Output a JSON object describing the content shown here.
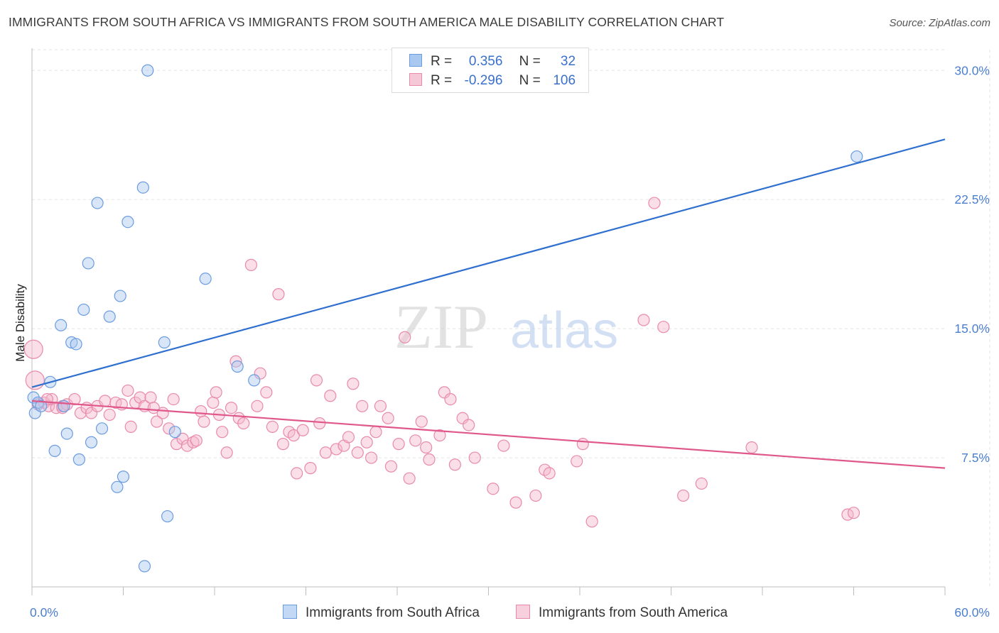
{
  "title": "IMMIGRANTS FROM SOUTH AFRICA VS IMMIGRANTS FROM SOUTH AMERICA MALE DISABILITY CORRELATION CHART",
  "source": "Source: ZipAtlas.com",
  "watermark": {
    "zip": "ZIP",
    "atlas": "atlas"
  },
  "colors": {
    "blue_fill": "#a9c8f0",
    "blue_stroke": "#6b9ce0",
    "blue_line": "#2f6fd0",
    "pink_fill": "#f5b6cb",
    "pink_stroke": "#e98aab",
    "pink_line": "#e0588a",
    "axis_text": "#4a7fd0",
    "grid": "#e3e3e3"
  },
  "legend": {
    "r_label": "R =",
    "n_label": "N =",
    "rows": [
      {
        "r": "0.356",
        "n": "32"
      },
      {
        "r": "-0.296",
        "n": "106"
      }
    ]
  },
  "chart_data": {
    "type": "scatter",
    "xlabel": "",
    "ylabel": "Male Disability",
    "xlim": [
      0,
      60
    ],
    "ylim": [
      0,
      31
    ],
    "x_tick_labels": [
      "0.0%",
      "60.0%"
    ],
    "y_ticks": [
      7.5,
      15.0,
      22.5,
      30.0
    ],
    "y_tick_labels": [
      "7.5%",
      "15.0%",
      "22.5%",
      "30.0%"
    ],
    "grid": "horizontal dashed",
    "legend_position": "top-center",
    "series": [
      {
        "name": "Immigrants from South Africa",
        "color": "blue",
        "trend": {
          "x": [
            0,
            60
          ],
          "y": [
            11.6,
            26.0
          ]
        },
        "points": [
          [
            0.1,
            11.0
          ],
          [
            0.2,
            10.1
          ],
          [
            0.4,
            10.7
          ],
          [
            0.6,
            10.5
          ],
          [
            1.2,
            11.9
          ],
          [
            1.5,
            7.9
          ],
          [
            1.9,
            15.2
          ],
          [
            2.1,
            10.5
          ],
          [
            2.3,
            8.9
          ],
          [
            2.6,
            14.2
          ],
          [
            2.9,
            14.1
          ],
          [
            3.1,
            7.4
          ],
          [
            3.4,
            16.1
          ],
          [
            3.7,
            18.8
          ],
          [
            3.9,
            8.4
          ],
          [
            4.3,
            22.3
          ],
          [
            4.6,
            9.2
          ],
          [
            5.1,
            15.7
          ],
          [
            5.8,
            16.9
          ],
          [
            5.6,
            5.8
          ],
          [
            6.0,
            6.4
          ],
          [
            6.3,
            21.2
          ],
          [
            7.3,
            23.2
          ],
          [
            7.6,
            30.0
          ],
          [
            7.4,
            1.2
          ],
          [
            8.7,
            14.2
          ],
          [
            8.9,
            4.1
          ],
          [
            9.4,
            9.0
          ],
          [
            11.4,
            17.9
          ],
          [
            13.5,
            12.8
          ],
          [
            14.6,
            12.0
          ],
          [
            54.2,
            25.0
          ]
        ]
      },
      {
        "name": "Immigrants from South America",
        "color": "pink",
        "trend": {
          "x": [
            0,
            60
          ],
          "y": [
            10.8,
            6.9
          ]
        },
        "points": [
          [
            0.1,
            13.8
          ],
          [
            0.2,
            12.0
          ],
          [
            0.4,
            10.6
          ],
          [
            0.8,
            10.7
          ],
          [
            1.1,
            10.5
          ],
          [
            1.3,
            10.9
          ],
          [
            1.6,
            10.4
          ],
          [
            2.0,
            10.5
          ],
          [
            2.3,
            10.6
          ],
          [
            2.8,
            10.9
          ],
          [
            3.2,
            10.1
          ],
          [
            3.6,
            10.4
          ],
          [
            3.9,
            10.1
          ],
          [
            4.3,
            10.5
          ],
          [
            4.8,
            10.8
          ],
          [
            5.1,
            10.0
          ],
          [
            5.5,
            10.7
          ],
          [
            5.9,
            10.6
          ],
          [
            6.3,
            11.4
          ],
          [
            6.5,
            9.3
          ],
          [
            6.8,
            10.7
          ],
          [
            7.1,
            11.0
          ],
          [
            7.4,
            10.5
          ],
          [
            7.8,
            11.0
          ],
          [
            8.0,
            10.4
          ],
          [
            8.2,
            9.6
          ],
          [
            8.6,
            10.1
          ],
          [
            9.0,
            9.2
          ],
          [
            9.3,
            10.9
          ],
          [
            9.5,
            8.3
          ],
          [
            9.9,
            8.6
          ],
          [
            10.2,
            8.2
          ],
          [
            10.6,
            8.4
          ],
          [
            11.1,
            10.2
          ],
          [
            11.3,
            9.6
          ],
          [
            11.9,
            10.7
          ],
          [
            12.1,
            11.3
          ],
          [
            12.5,
            9.0
          ],
          [
            12.8,
            7.8
          ],
          [
            13.1,
            10.4
          ],
          [
            13.4,
            13.1
          ],
          [
            13.6,
            9.8
          ],
          [
            13.9,
            9.5
          ],
          [
            14.4,
            18.7
          ],
          [
            14.8,
            10.5
          ],
          [
            15.0,
            12.4
          ],
          [
            15.4,
            11.3
          ],
          [
            15.8,
            9.3
          ],
          [
            16.2,
            17.0
          ],
          [
            16.5,
            8.3
          ],
          [
            16.9,
            9.0
          ],
          [
            17.2,
            8.8
          ],
          [
            17.4,
            6.6
          ],
          [
            17.8,
            9.1
          ],
          [
            18.3,
            6.9
          ],
          [
            18.7,
            12.0
          ],
          [
            18.9,
            9.5
          ],
          [
            19.3,
            7.8
          ],
          [
            19.6,
            11.1
          ],
          [
            20.0,
            8.0
          ],
          [
            20.5,
            8.2
          ],
          [
            20.8,
            8.7
          ],
          [
            21.1,
            11.8
          ],
          [
            21.4,
            7.8
          ],
          [
            21.7,
            10.5
          ],
          [
            22.0,
            8.4
          ],
          [
            22.3,
            7.5
          ],
          [
            22.6,
            9.0
          ],
          [
            22.9,
            10.5
          ],
          [
            23.4,
            9.8
          ],
          [
            23.6,
            7.0
          ],
          [
            24.1,
            8.3
          ],
          [
            24.5,
            14.5
          ],
          [
            24.8,
            6.3
          ],
          [
            25.2,
            8.5
          ],
          [
            25.6,
            9.6
          ],
          [
            25.9,
            8.1
          ],
          [
            26.1,
            7.4
          ],
          [
            26.8,
            8.8
          ],
          [
            27.1,
            11.3
          ],
          [
            27.5,
            10.9
          ],
          [
            27.8,
            7.1
          ],
          [
            28.3,
            9.8
          ],
          [
            28.7,
            9.4
          ],
          [
            29.1,
            7.5
          ],
          [
            30.3,
            5.7
          ],
          [
            31.0,
            8.2
          ],
          [
            31.8,
            4.9
          ],
          [
            33.1,
            5.3
          ],
          [
            33.7,
            6.8
          ],
          [
            34.0,
            6.6
          ],
          [
            35.8,
            7.3
          ],
          [
            36.2,
            8.3
          ],
          [
            36.8,
            3.8
          ],
          [
            40.2,
            15.5
          ],
          [
            40.9,
            22.3
          ],
          [
            41.5,
            15.1
          ],
          [
            42.8,
            5.3
          ],
          [
            47.3,
            8.1
          ],
          [
            53.6,
            4.2
          ],
          [
            54.0,
            4.3
          ],
          [
            1.0,
            10.9
          ],
          [
            2.0,
            10.4
          ],
          [
            10.8,
            8.5
          ],
          [
            12.3,
            10.0
          ],
          [
            44.0,
            6.0
          ]
        ]
      }
    ]
  },
  "bottom_legend": [
    {
      "label": "Immigrants from South Africa"
    },
    {
      "label": "Immigrants from South America"
    }
  ]
}
